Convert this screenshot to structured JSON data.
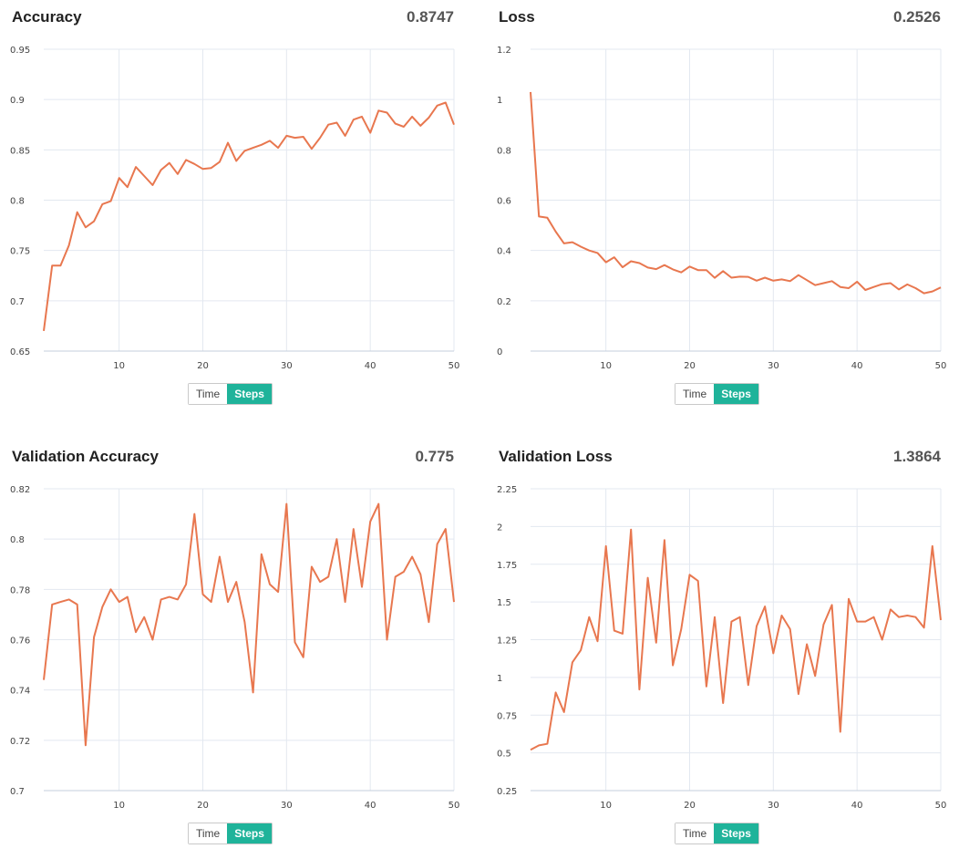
{
  "toggle": {
    "time_label": "Time",
    "steps_label": "Steps"
  },
  "colors": {
    "line": "#e8774f",
    "accent": "#1fb39a",
    "grid": "#e3e8f0"
  },
  "chart_data": [
    {
      "type": "line",
      "title": "Accuracy",
      "current_value": "0.8747",
      "ylim": [
        0.65,
        0.95
      ],
      "yticks": [
        0.65,
        0.7,
        0.75,
        0.8,
        0.85,
        0.9,
        0.95
      ],
      "ytick_labels": [
        "0.65",
        "0.7",
        "0.75",
        "0.8",
        "0.85",
        "0.9",
        "0.95"
      ],
      "xticks": [
        10,
        20,
        30,
        40,
        50
      ],
      "xlim": [
        1,
        50
      ],
      "series": [
        {
          "x": [
            1,
            2,
            3,
            4,
            5,
            6,
            7,
            8,
            9,
            10,
            11,
            12,
            13,
            14,
            15,
            16,
            17,
            18,
            19,
            20,
            21,
            22,
            23,
            24,
            25,
            26,
            27,
            28,
            29,
            30,
            31,
            32,
            33,
            34,
            35,
            36,
            37,
            38,
            39,
            40,
            41,
            42,
            43,
            44,
            45,
            46,
            47,
            48,
            49,
            50
          ],
          "values": [
            0.67,
            0.735,
            0.735,
            0.755,
            0.788,
            0.773,
            0.779,
            0.796,
            0.799,
            0.822,
            0.813,
            0.833,
            0.824,
            0.815,
            0.83,
            0.837,
            0.826,
            0.84,
            0.836,
            0.831,
            0.832,
            0.838,
            0.857,
            0.839,
            0.849,
            0.852,
            0.855,
            0.859,
            0.852,
            0.864,
            0.862,
            0.863,
            0.851,
            0.862,
            0.875,
            0.877,
            0.864,
            0.88,
            0.883,
            0.867,
            0.889,
            0.887,
            0.876,
            0.873,
            0.883,
            0.874,
            0.882,
            0.894,
            0.897,
            0.875
          ]
        }
      ]
    },
    {
      "type": "line",
      "title": "Loss",
      "current_value": "0.2526",
      "ylim": [
        0,
        1.2
      ],
      "yticks": [
        0,
        0.2,
        0.4,
        0.6,
        0.8,
        1,
        1.2
      ],
      "ytick_labels": [
        "0",
        "0.2",
        "0.4",
        "0.6",
        "0.8",
        "1",
        "1.2"
      ],
      "xticks": [
        10,
        20,
        30,
        40,
        50
      ],
      "xlim": [
        1,
        50
      ],
      "series": [
        {
          "x": [
            1,
            2,
            3,
            4,
            5,
            6,
            7,
            8,
            9,
            10,
            11,
            12,
            13,
            14,
            15,
            16,
            17,
            18,
            19,
            20,
            21,
            22,
            23,
            24,
            25,
            26,
            27,
            28,
            29,
            30,
            31,
            32,
            33,
            34,
            35,
            36,
            37,
            38,
            39,
            40,
            41,
            42,
            43,
            44,
            45,
            46,
            47,
            48,
            49,
            50
          ],
          "values": [
            1.03,
            0.535,
            0.53,
            0.475,
            0.428,
            0.433,
            0.415,
            0.4,
            0.39,
            0.353,
            0.373,
            0.333,
            0.357,
            0.35,
            0.332,
            0.326,
            0.342,
            0.325,
            0.313,
            0.336,
            0.322,
            0.322,
            0.291,
            0.318,
            0.292,
            0.296,
            0.295,
            0.28,
            0.292,
            0.28,
            0.285,
            0.278,
            0.302,
            0.282,
            0.262,
            0.27,
            0.278,
            0.255,
            0.25,
            0.276,
            0.243,
            0.255,
            0.266,
            0.27,
            0.245,
            0.265,
            0.25,
            0.23,
            0.237,
            0.253
          ]
        }
      ]
    },
    {
      "type": "line",
      "title": "Validation Accuracy",
      "current_value": "0.775",
      "ylim": [
        0.7,
        0.82
      ],
      "yticks": [
        0.7,
        0.72,
        0.74,
        0.76,
        0.78,
        0.8,
        0.82
      ],
      "ytick_labels": [
        "0.7",
        "0.72",
        "0.74",
        "0.76",
        "0.78",
        "0.8",
        "0.82"
      ],
      "xticks": [
        10,
        20,
        30,
        40,
        50
      ],
      "xlim": [
        1,
        50
      ],
      "series": [
        {
          "x": [
            1,
            2,
            3,
            4,
            5,
            6,
            7,
            8,
            9,
            10,
            11,
            12,
            13,
            14,
            15,
            16,
            17,
            18,
            19,
            20,
            21,
            22,
            23,
            24,
            25,
            26,
            27,
            28,
            29,
            30,
            31,
            32,
            33,
            34,
            35,
            36,
            37,
            38,
            39,
            40,
            41,
            42,
            43,
            44,
            45,
            46,
            47,
            48,
            49,
            50
          ],
          "values": [
            0.744,
            0.774,
            0.775,
            0.776,
            0.774,
            0.718,
            0.761,
            0.773,
            0.78,
            0.775,
            0.777,
            0.763,
            0.769,
            0.76,
            0.776,
            0.777,
            0.776,
            0.782,
            0.81,
            0.778,
            0.775,
            0.793,
            0.775,
            0.783,
            0.767,
            0.739,
            0.794,
            0.782,
            0.779,
            0.814,
            0.759,
            0.753,
            0.789,
            0.783,
            0.785,
            0.8,
            0.775,
            0.804,
            0.781,
            0.807,
            0.814,
            0.76,
            0.785,
            0.787,
            0.793,
            0.786,
            0.767,
            0.798,
            0.804,
            0.775
          ]
        }
      ]
    },
    {
      "type": "line",
      "title": "Validation Loss",
      "current_value": "1.3864",
      "ylim": [
        0.25,
        2.25
      ],
      "yticks": [
        0.25,
        0.5,
        0.75,
        1,
        1.25,
        1.5,
        1.75,
        2,
        2.25
      ],
      "ytick_labels": [
        "0.25",
        "0.5",
        "0.75",
        "1",
        "1.25",
        "1.5",
        "1.75",
        "2",
        "2.25"
      ],
      "xticks": [
        10,
        20,
        30,
        40,
        50
      ],
      "xlim": [
        1,
        50
      ],
      "series": [
        {
          "x": [
            1,
            2,
            3,
            4,
            5,
            6,
            7,
            8,
            9,
            10,
            11,
            12,
            13,
            14,
            15,
            16,
            17,
            18,
            19,
            20,
            21,
            22,
            23,
            24,
            25,
            26,
            27,
            28,
            29,
            30,
            31,
            32,
            33,
            34,
            35,
            36,
            37,
            38,
            39,
            40,
            41,
            42,
            43,
            44,
            45,
            46,
            47,
            48,
            49,
            50
          ],
          "values": [
            0.52,
            0.55,
            0.56,
            0.9,
            0.77,
            1.1,
            1.18,
            1.4,
            1.24,
            1.87,
            1.31,
            1.29,
            1.98,
            0.92,
            1.66,
            1.23,
            1.91,
            1.08,
            1.32,
            1.68,
            1.64,
            0.94,
            1.4,
            0.83,
            1.37,
            1.4,
            0.95,
            1.34,
            1.47,
            1.16,
            1.41,
            1.32,
            0.89,
            1.22,
            1.01,
            1.35,
            1.48,
            0.64,
            1.52,
            1.37,
            1.37,
            1.4,
            1.25,
            1.45,
            1.4,
            1.41,
            1.4,
            1.33,
            1.87,
            1.38
          ]
        }
      ]
    }
  ]
}
